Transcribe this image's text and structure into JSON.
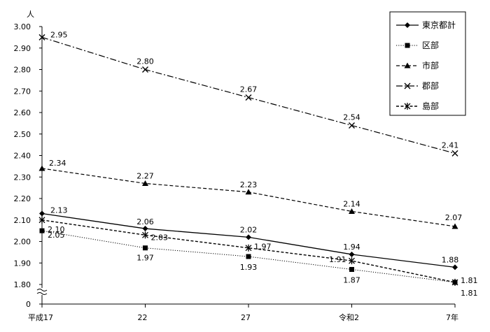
{
  "chart_data": {
    "type": "line",
    "ylabel": "人",
    "categories": [
      "平成17",
      "22",
      "27",
      "令和2",
      "7年"
    ],
    "y_ticks": [
      "0",
      "1.80",
      "1.90",
      "2.00",
      "2.10",
      "2.20",
      "2.30",
      "2.40",
      "2.50",
      "2.60",
      "2.70",
      "2.80",
      "2.90",
      "3.00"
    ],
    "ylim": [
      1.8,
      3.0
    ],
    "axis_break": true,
    "grid": false,
    "legend_position": "top-right",
    "series": [
      {
        "name": "東京都計",
        "values": [
          2.13,
          2.06,
          2.02,
          1.94,
          1.88
        ],
        "labels": [
          "2.13",
          "2.06",
          "2.02",
          "1.94",
          "1.88"
        ],
        "marker": "diamond",
        "dash": "solid",
        "color": "#000000"
      },
      {
        "name": "区部",
        "values": [
          2.05,
          1.97,
          1.93,
          1.87,
          1.81
        ],
        "labels": [
          "2.05",
          "1.97",
          "1.93",
          "1.87",
          "1.81"
        ],
        "marker": "square",
        "dash": "dotted",
        "color": "#000000"
      },
      {
        "name": "市部",
        "values": [
          2.34,
          2.27,
          2.23,
          2.14,
          2.07
        ],
        "labels": [
          "2.34",
          "2.27",
          "2.23",
          "2.14",
          "2.07"
        ],
        "marker": "triangle",
        "dash": "dashed",
        "color": "#000000"
      },
      {
        "name": "郡部",
        "values": [
          2.95,
          2.8,
          2.67,
          2.54,
          2.41
        ],
        "labels": [
          "2.95",
          "2.80",
          "2.67",
          "2.54",
          "2.41"
        ],
        "marker": "x",
        "dash": "dashdot",
        "color": "#000000"
      },
      {
        "name": "島部",
        "values": [
          2.1,
          2.03,
          1.97,
          1.91,
          1.81
        ],
        "labels": [
          "2.10",
          "2.03",
          "1.97",
          "1.91",
          "1.81"
        ],
        "marker": "star",
        "dash": "shortdash",
        "color": "#000000"
      }
    ]
  }
}
